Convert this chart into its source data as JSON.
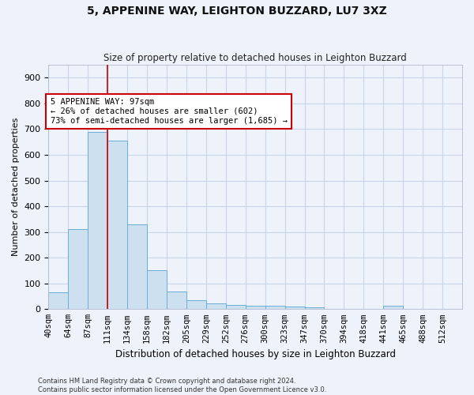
{
  "title1": "5, APPENINE WAY, LEIGHTON BUZZARD, LU7 3XZ",
  "title2": "Size of property relative to detached houses in Leighton Buzzard",
  "xlabel": "Distribution of detached houses by size in Leighton Buzzard",
  "ylabel": "Number of detached properties",
  "footnote": "Contains HM Land Registry data © Crown copyright and database right 2024.\nContains public sector information licensed under the Open Government Licence v3.0.",
  "bar_labels": [
    "40sqm",
    "64sqm",
    "87sqm",
    "111sqm",
    "134sqm",
    "158sqm",
    "182sqm",
    "205sqm",
    "229sqm",
    "252sqm",
    "276sqm",
    "300sqm",
    "323sqm",
    "347sqm",
    "370sqm",
    "394sqm",
    "418sqm",
    "441sqm",
    "465sqm",
    "488sqm",
    "512sqm"
  ],
  "bar_values": [
    65,
    310,
    690,
    655,
    330,
    150,
    68,
    35,
    22,
    15,
    12,
    12,
    10,
    8,
    0,
    0,
    0,
    12,
    0,
    0,
    0
  ],
  "bar_color": "#cce0f0",
  "bar_edge_color": "#6aaed6",
  "grid_color": "#c8d4e8",
  "background_color": "#eef2fa",
  "annotation_text": "5 APPENINE WAY: 97sqm\n← 26% of detached houses are smaller (602)\n73% of semi-detached houses are larger (1,685) →",
  "annotation_box_color": "#ffffff",
  "annotation_border_color": "#cc0000",
  "red_line_color": "#cc0000",
  "ylim": [
    0,
    950
  ],
  "yticks": [
    0,
    100,
    200,
    300,
    400,
    500,
    600,
    700,
    800,
    900
  ],
  "bin_edges": [
    28.5,
    51.5,
    74.5,
    97.5,
    120.5,
    143.5,
    166.5,
    189.5,
    212.5,
    235.5,
    258.5,
    281.5,
    304.5,
    327.5,
    350.5,
    373.5,
    396.5,
    419.5,
    442.5,
    465.5,
    488.5,
    511.5
  ],
  "property_sqm": 97,
  "red_line_bin_index": 2,
  "title1_fontsize": 10,
  "title2_fontsize": 8.5,
  "xlabel_fontsize": 8.5,
  "ylabel_fontsize": 8.0,
  "tick_fontsize": 7.5,
  "ytick_fontsize": 8.0,
  "annot_fontsize": 7.5
}
